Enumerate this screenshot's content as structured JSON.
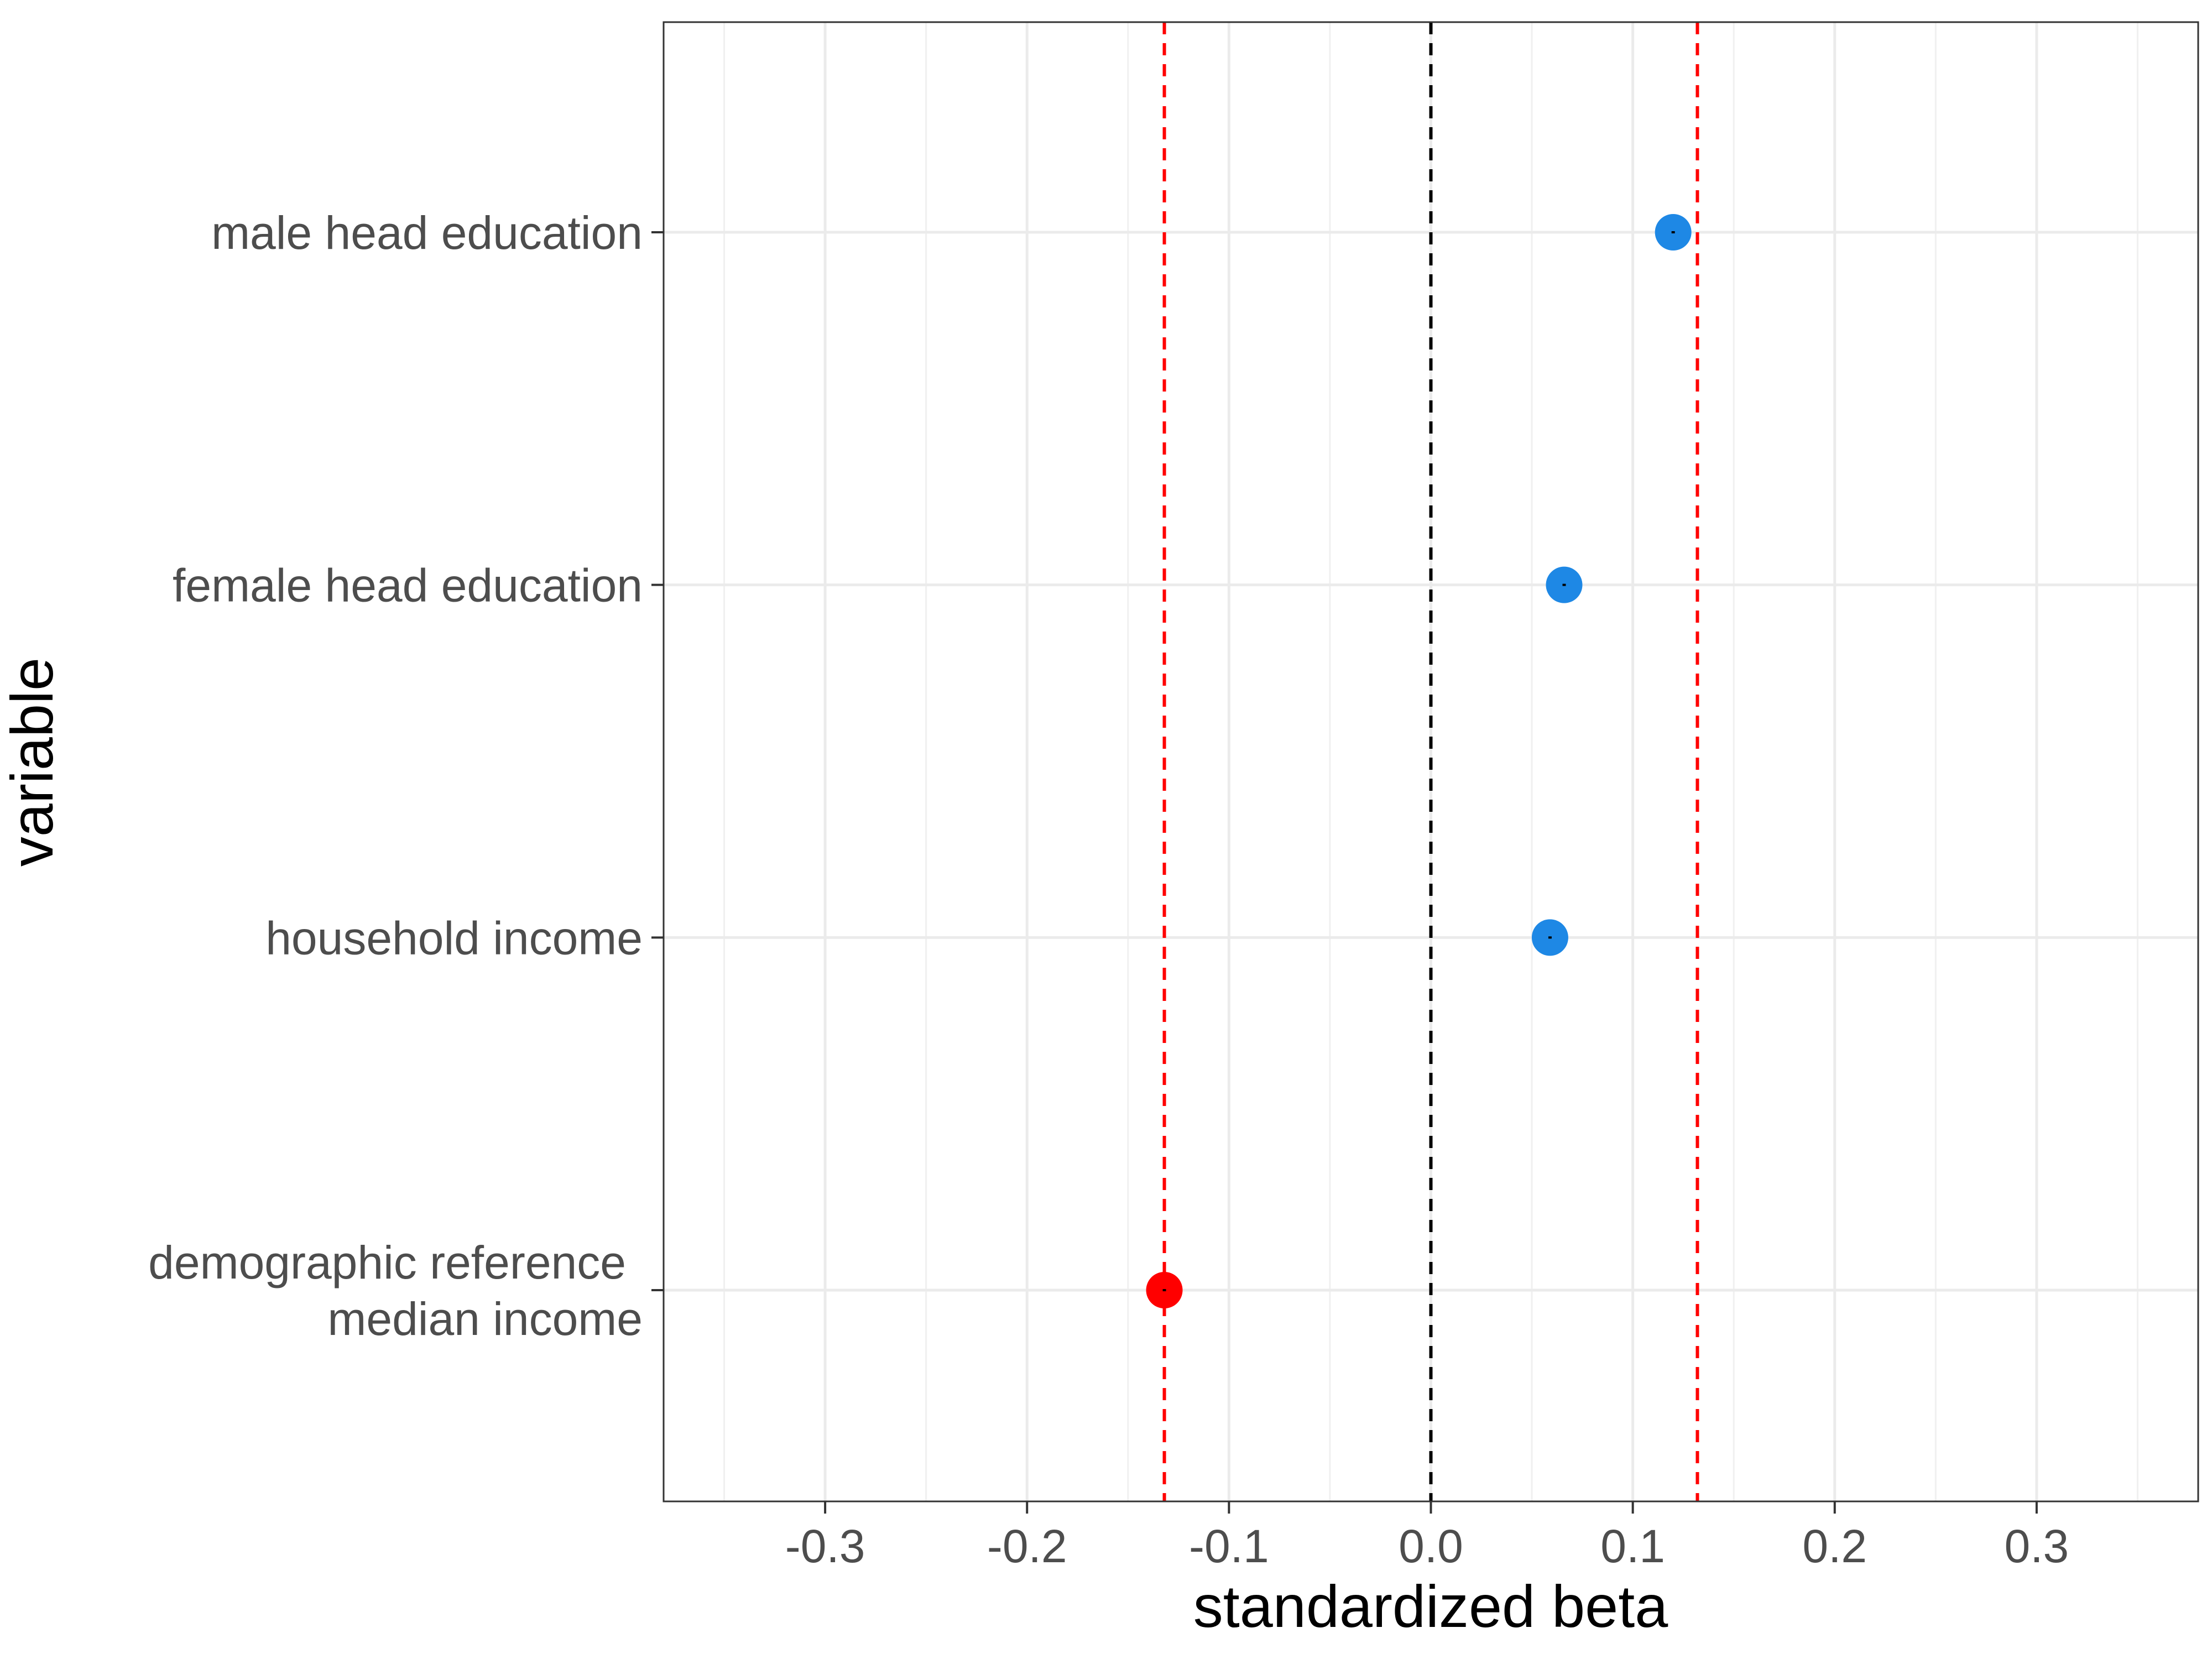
{
  "chart_data": {
    "type": "scatter",
    "xlabel": "standardized beta",
    "ylabel": "variable",
    "xlim": [
      -0.38,
      0.38
    ],
    "x_ticks": [
      {
        "value": -0.3,
        "label": "-0.3"
      },
      {
        "value": -0.2,
        "label": "-0.2"
      },
      {
        "value": -0.1,
        "label": "-0.1"
      },
      {
        "value": 0.0,
        "label": "0.0"
      },
      {
        "value": 0.1,
        "label": "0.1"
      },
      {
        "value": 0.2,
        "label": "0.2"
      },
      {
        "value": 0.3,
        "label": "0.3"
      }
    ],
    "x_minor_ticks": [
      -0.35,
      -0.25,
      -0.15,
      -0.05,
      0.05,
      0.15,
      0.25,
      0.35
    ],
    "categories": [
      {
        "lines": [
          "demographic reference",
          "median income"
        ]
      },
      {
        "lines": [
          "household income"
        ]
      },
      {
        "lines": [
          "female head education"
        ]
      },
      {
        "lines": [
          "male head education"
        ]
      }
    ],
    "points": [
      {
        "category_index": 3,
        "x": 0.12,
        "color": "#1e88e5"
      },
      {
        "category_index": 2,
        "x": 0.066,
        "color": "#1e88e5"
      },
      {
        "category_index": 1,
        "x": 0.059,
        "color": "#1e88e5"
      },
      {
        "category_index": 0,
        "x": -0.132,
        "color": "#ff0000"
      }
    ],
    "reference_lines": [
      {
        "x": 0.0,
        "color": "#000000",
        "style": "dashed"
      },
      {
        "x": -0.132,
        "color": "#ff0000",
        "style": "dashed"
      },
      {
        "x": 0.132,
        "color": "#ff0000",
        "style": "dashed"
      }
    ],
    "grid": true,
    "legend": "none"
  }
}
